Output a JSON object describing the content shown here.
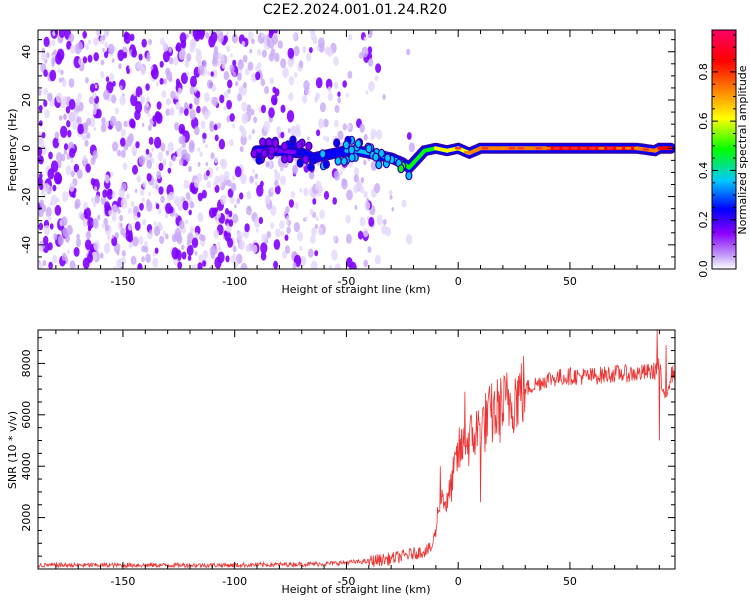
{
  "title": "C2E2.2024.001.01.24.R20",
  "chart_data": [
    {
      "type": "heatmap",
      "xlabel": "Height of straight line (km)",
      "ylabel": "Frequency (Hz)",
      "xlim": [
        -188,
        97
      ],
      "ylim": [
        -50,
        49
      ],
      "xticks": [
        -150,
        -100,
        -50,
        0,
        50
      ],
      "yticks": [
        -40,
        -20,
        0,
        20,
        40
      ],
      "colorbar": {
        "label": "Normalized spectral amplitude",
        "range": [
          0,
          0.97
        ],
        "ticks": [
          "0.0",
          "0.2",
          "0.4",
          "0.6",
          "0.8"
        ],
        "tick_values": [
          0.0,
          0.2,
          0.4,
          0.6,
          0.8
        ],
        "colormap": [
          "#e8e0fb",
          "#8a00ff",
          "#0000ff",
          "#00c8ff",
          "#00ff00",
          "#ffff00",
          "#ff8000",
          "#ff0000",
          "#ff0066"
        ]
      },
      "ridge": {
        "x": [
          -90,
          -80,
          -70,
          -65,
          -60,
          -55,
          -50,
          -45,
          -40,
          -35,
          -30,
          -25,
          -22,
          -20,
          -15,
          -10,
          -5,
          0,
          5,
          10,
          20,
          40,
          60,
          80,
          88,
          90,
          95
        ],
        "y": [
          -1,
          -1,
          -2,
          -4,
          -3,
          -2,
          -1,
          -1,
          -2,
          -3,
          -4,
          -6,
          -8,
          -6,
          -1,
          0,
          -1,
          0,
          -2,
          0,
          0,
          0,
          0,
          0,
          -1,
          0,
          0
        ],
        "amplitude": [
          0.12,
          0.15,
          0.18,
          0.25,
          0.3,
          0.3,
          0.3,
          0.35,
          0.35,
          0.4,
          0.4,
          0.42,
          0.45,
          0.45,
          0.5,
          0.55,
          0.6,
          0.65,
          0.65,
          0.7,
          0.75,
          0.8,
          0.85,
          0.85,
          0.7,
          0.8,
          0.85
        ]
      }
    },
    {
      "type": "line",
      "xlabel": "Height of straight line (km)",
      "ylabel": "SNR (10 * v/v)",
      "xlim": [
        -188,
        97
      ],
      "ylim": [
        0,
        9300
      ],
      "xticks": [
        -150,
        -100,
        -50,
        0,
        50
      ],
      "yticks": [
        2000,
        4000,
        6000,
        8000
      ],
      "series_color": "#ee3333",
      "envelope": {
        "x": [
          -188,
          -100,
          -60,
          -40,
          -30,
          -20,
          -15,
          -12,
          -10,
          -8,
          -5,
          0,
          5,
          10,
          15,
          20,
          25,
          30,
          35,
          40,
          50,
          60,
          70,
          80,
          88,
          90,
          92,
          95,
          97
        ],
        "y": [
          150,
          150,
          200,
          300,
          400,
          600,
          700,
          800,
          1500,
          3000,
          2500,
          4500,
          5000,
          5500,
          6000,
          6300,
          6700,
          7000,
          7200,
          7400,
          7500,
          7500,
          7600,
          7600,
          7700,
          8000,
          6500,
          7500,
          7700
        ]
      },
      "spikes": [
        {
          "x": -8,
          "y": 4000
        },
        {
          "x": 3,
          "y": 6900
        },
        {
          "x": 10,
          "y": 2600
        },
        {
          "x": 89,
          "y": 9300
        },
        {
          "x": 90,
          "y": 5000
        },
        {
          "x": 93,
          "y": 8700
        }
      ]
    }
  ]
}
